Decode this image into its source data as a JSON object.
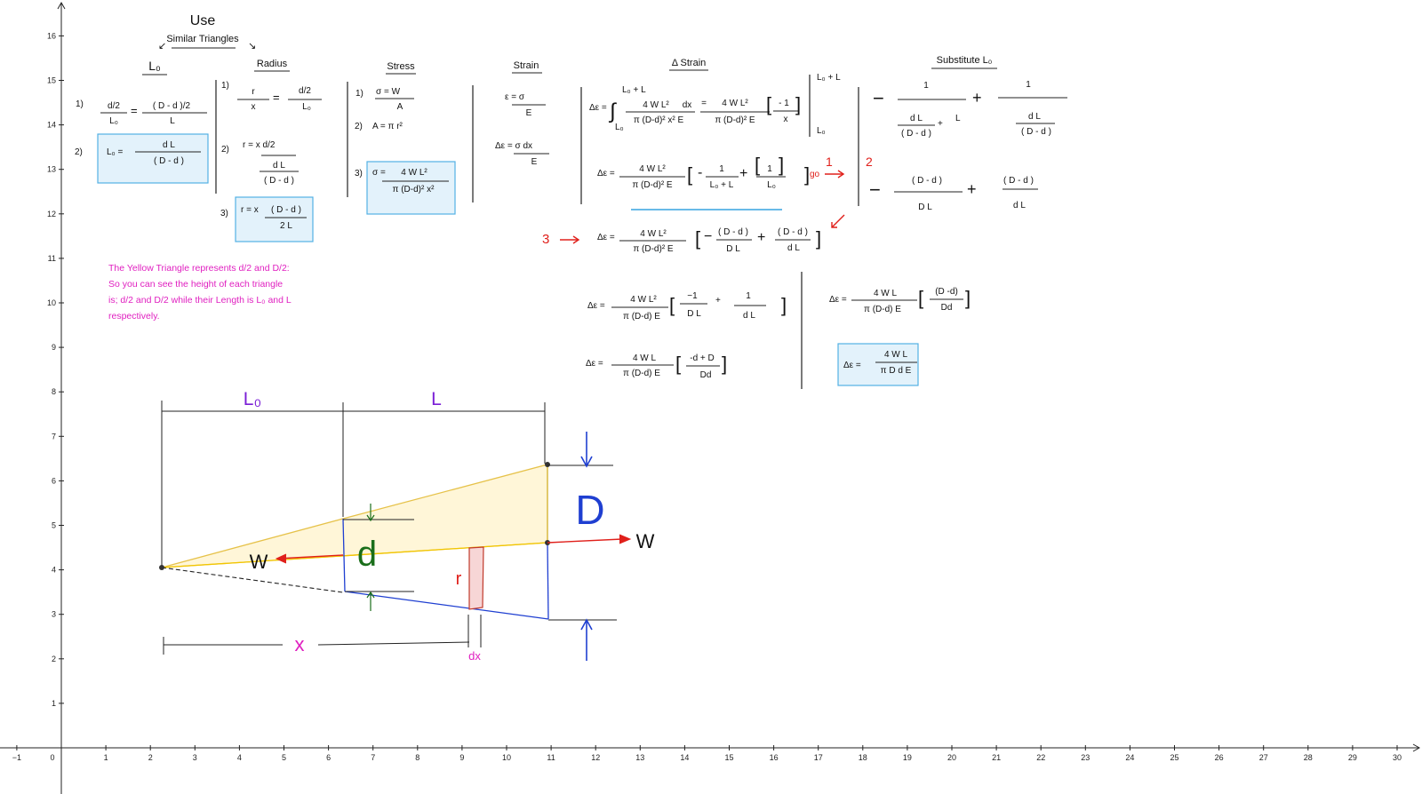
{
  "axes": {
    "x_ticks": [
      "−1",
      "0",
      "1",
      "2",
      "3",
      "4",
      "5",
      "6",
      "7",
      "8",
      "9",
      "10",
      "11",
      "12",
      "13",
      "14",
      "15",
      "16",
      "17",
      "18",
      "19",
      "20",
      "21",
      "22",
      "23",
      "24",
      "25",
      "26",
      "27",
      "28",
      "29",
      "30"
    ],
    "y_ticks": [
      "1",
      "2",
      "3",
      "4",
      "5",
      "6",
      "7",
      "8",
      "9",
      "10",
      "11",
      "12",
      "13",
      "14",
      "15",
      "16"
    ]
  },
  "headers": {
    "use": "Use",
    "similar_triangles": "Similar Triangles",
    "l0": "L₀",
    "radius": "Radius",
    "stress": "Stress",
    "strain": "Strain",
    "delta_strain": "Δ Strain",
    "substitute": "Substitute L₀"
  },
  "col_l0": {
    "n1": "1)",
    "n2": "2)",
    "a_num": "d/2",
    "a_den": "L₀",
    "eq": "=",
    "b_num": "( D - d )/2",
    "b_den": "L",
    "l0_lhs": "L₀ =",
    "l0_num": "d L",
    "l0_den": "( D - d )"
  },
  "col_radius": {
    "n1": "1)",
    "n2": "2)",
    "n3": "3)",
    "r_num": "r",
    "r_den": "x",
    "eq": "=",
    "rhs_num": "d/2",
    "rhs_den": "L₀",
    "r2_text": "r  =  x  d/2",
    "r2_num": "d L",
    "r2_den": "( D - d )",
    "r3_lhs": "r = x",
    "r3_num": "( D - d )",
    "r3_den": "2 L"
  },
  "col_stress": {
    "n1": "1)",
    "n2": "2)",
    "n3": "3)",
    "s1_lhs": "σ = W",
    "s1_den": "A",
    "s2": "A = π r²",
    "s3_lhs": "σ =",
    "s3_num": "4 W L²",
    "s3_den": "π (D-d)² x²"
  },
  "col_strain": {
    "e1_lhs": "ε = σ",
    "e1_den": "E",
    "e2_lhs": "Δε = σ dx",
    "e2_den": "E"
  },
  "col_delta": {
    "de1_lhs": "Δε =",
    "upper": "L₀ + L",
    "lower": "L₀",
    "f1_num": "4 W L²",
    "dx": "dx",
    "f1_den": "π (D-d)² x² E",
    "eq": "=",
    "f2_num": "4 W L²",
    "f2_den": "π (D-d)² E",
    "inner_num": "- 1",
    "inner_den": "x",
    "eval_upper": "L₀ + L",
    "eval_lower": "L₀",
    "de2_lhs": "Δε =",
    "de2_num": "4 W L²",
    "de2_den": "π (D-d)² E",
    "minus": "-",
    "t1_num": "1",
    "t1_den": "L₀ + L",
    "plus": "+",
    "t2_num": "1",
    "t2_den": "L₀",
    "go": "go",
    "de3_lhs": "Δε =",
    "de3_num": "4 W L²",
    "de3_den": "π (D-d)² E",
    "u1_num": "( D - d )",
    "u1_den": "D L",
    "u2_num": "( D - d )",
    "u2_den": "d L",
    "de4_lhs": "Δε =",
    "de4_num": "4 W L²",
    "de4_den": "π (D-d) E",
    "v1_num": "−1",
    "v1_den": "D L",
    "v2_num": "1",
    "v2_den": "d L",
    "de5_lhs": "Δε =",
    "de5_num": "4 W L",
    "de5_den": "π (D-d) E",
    "w_num": "-d + D",
    "w_den": "Dd",
    "de6_lhs": "Δε =",
    "de6_num": "4 W L",
    "de6_den": "π (D-d) E",
    "x_num": "(D -d)",
    "x_den": "Dd",
    "final_lhs": "Δε =",
    "final_num": "4 W L",
    "final_den": "π  D d  E"
  },
  "col_sub": {
    "minus": "−",
    "plus": "+",
    "a_num": "1",
    "a_den_num": "d L",
    "a_den_den": "( D - d )",
    "a_plus": "+",
    "a_L": "L",
    "b_num": "1",
    "b_den_num": "d L",
    "b_den_den": "( D - d )",
    "c_num": "( D - d )",
    "c_den": "D L",
    "d_num": "( D - d )",
    "d_den": "d L"
  },
  "markers": {
    "m1": "1",
    "m2": "2",
    "m3": "3"
  },
  "note": {
    "line1": "The Yellow Triangle represents d/2 and D/2:",
    "line2": "So you can see the height of each triangle",
    "line3": "is;  d/2 and D/2 while their Length is L₀ and L",
    "line4": "respectively."
  },
  "diagram": {
    "L0": "L₀",
    "L": "L",
    "D": "D",
    "d": "d",
    "W_left": "W",
    "W_right": "W",
    "r": "r",
    "x": "x",
    "dx": "dx"
  },
  "colors": {
    "blue": "#1f3fd1",
    "green": "#1a6e1a",
    "purple": "#7a1fd6",
    "magenta": "#e020c0",
    "red": "#e0201b",
    "yellow_fill": "#fff6d8",
    "box_fill": "#dff0fb",
    "box_stroke": "#36a4e0"
  }
}
